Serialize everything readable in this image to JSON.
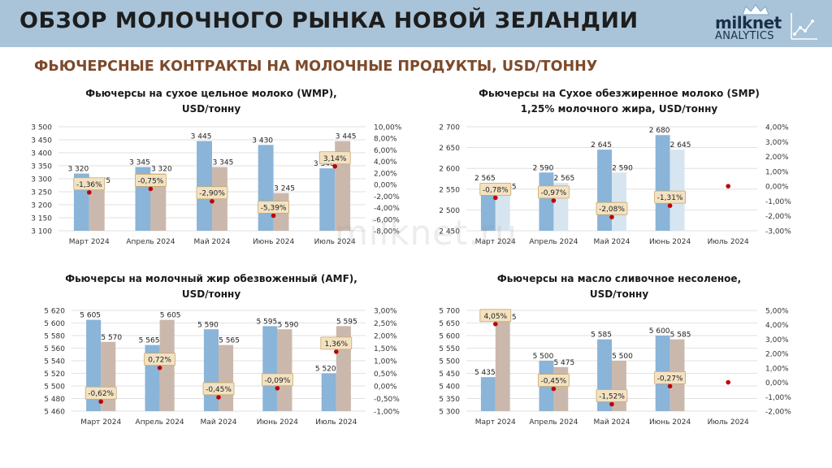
{
  "header": {
    "title": "ОБЗОР МОЛОЧНОГО РЫНКА НОВОЙ ЗЕЛАНДИИ",
    "logo_name": "milknet",
    "logo_sub": "ANALYTICS"
  },
  "section_title": "ФЬЮЧЕРСНЫЕ КОНТРАКТЫ НА МОЛОЧНЫЕ ПРОДУКТЫ, USD/ТОННУ",
  "watermark": "milknet.ru",
  "colors": {
    "bar_current": "#8ab4d8",
    "bar_prev": "#cbb8ac",
    "bar_prev_light": "#d6e5f0",
    "marker": "#c00000",
    "label_bg": "#f3e2c2",
    "label_border": "#c8a86a",
    "gridline": "#d9d9d9"
  },
  "chart_data": [
    {
      "type": "bar",
      "title_lines": [
        "Фьючерсы на сухое цельное молоко (WMP),",
        "USD/тонну"
      ],
      "categories": [
        "Март 2024",
        "Апрель 2024",
        "Май 2024",
        "Июнь 2024",
        "Июль 2024"
      ],
      "bars_a": [
        3320,
        3345,
        3445,
        3430,
        3340
      ],
      "bars_b": [
        3275,
        3320,
        3345,
        3245,
        3445
      ],
      "bars_a_labels": [
        "3 320",
        "3 345",
        "3 445",
        "3 430",
        "3 340"
      ],
      "bars_b_labels": [
        "3 275",
        "3 320",
        "3 345",
        "3 245",
        "3 445"
      ],
      "pct": [
        -1.36,
        -0.75,
        -2.9,
        -5.39,
        3.14
      ],
      "pct_labels": [
        "-1,36%",
        "-0,75%",
        "-2,90%",
        "-5,39%",
        "3,14%"
      ],
      "bars_b_color": "prev",
      "ylim": [
        3100,
        3500
      ],
      "yticks": [
        3100,
        3150,
        3200,
        3250,
        3300,
        3350,
        3400,
        3450,
        3500
      ],
      "ytick_labels": [
        "3 100",
        "3 150",
        "3 200",
        "3 250",
        "3 300",
        "3 350",
        "3 400",
        "3 450",
        "3 500"
      ],
      "y2lim": [
        -8,
        10
      ],
      "y2ticks": [
        -8,
        -6,
        -4,
        -2,
        0,
        2,
        4,
        6,
        8,
        10
      ],
      "y2tick_labels": [
        "-8,00%",
        "-6,00%",
        "-4,00%",
        "-2,00%",
        "0,00%",
        "2,00%",
        "4,00%",
        "6,00%",
        "8,00%",
        "10,00%"
      ]
    },
    {
      "type": "bar",
      "title_lines": [
        "Фьючерсы на Сухое обезжиренное молоко (SMP)",
        "1,25% молочного жира, USD/тонну"
      ],
      "categories": [
        "Март 2024",
        "Апрель 2024",
        "Май 2024",
        "Июнь 2024",
        "Июль 2024"
      ],
      "bars_a": [
        2565,
        2590,
        2645,
        2680,
        null
      ],
      "bars_b": [
        2545,
        2565,
        2590,
        2645,
        null
      ],
      "bars_a_labels": [
        "2 565",
        "2 590",
        "2 645",
        "2 680",
        ""
      ],
      "bars_b_labels": [
        "2 545",
        "2 565",
        "2 590",
        "2 645",
        ""
      ],
      "pct": [
        -0.78,
        -0.97,
        -2.08,
        -1.31,
        0
      ],
      "pct_labels": [
        "-0,78%",
        "-0,97%",
        "-2,08%",
        "-1,31%",
        ""
      ],
      "bars_b_color": "prev_light",
      "ylim": [
        2450,
        2700
      ],
      "yticks": [
        2450,
        2500,
        2550,
        2600,
        2650,
        2700
      ],
      "ytick_labels": [
        "2 450",
        "2 500",
        "2 550",
        "2 600",
        "2 650",
        "2 700"
      ],
      "y2lim": [
        -3,
        4
      ],
      "y2ticks": [
        -3,
        -2,
        -1,
        0,
        1,
        2,
        3,
        4
      ],
      "y2tick_labels": [
        "-3,00%",
        "-2,00%",
        "-1,00%",
        "0,00%",
        "1,00%",
        "2,00%",
        "3,00%",
        "4,00%"
      ]
    },
    {
      "type": "bar",
      "title_lines": [
        "Фьючерсы на молочный жир обезвоженный (AMF),",
        "USD/тонну"
      ],
      "categories": [
        "Март 2024",
        "Апрель 2024",
        "Май 2024",
        "Июнь 2024",
        "Июль 2024"
      ],
      "bars_a": [
        5605,
        5565,
        5590,
        5595,
        5520
      ],
      "bars_b": [
        5570,
        5605,
        5565,
        5590,
        5595
      ],
      "bars_a_labels": [
        "5 605",
        "5 565",
        "5 590",
        "5 595",
        "5 520"
      ],
      "bars_b_labels": [
        "5 570",
        "5 605",
        "5 565",
        "5 590",
        "5 595"
      ],
      "pct": [
        -0.62,
        0.72,
        -0.45,
        -0.09,
        1.36
      ],
      "pct_labels": [
        "-0,62%",
        "0,72%",
        "-0,45%",
        "-0,09%",
        "1,36%"
      ],
      "bars_b_color": "prev",
      "ylim": [
        5460,
        5620
      ],
      "yticks": [
        5460,
        5480,
        5500,
        5520,
        5540,
        5560,
        5580,
        5600,
        5620
      ],
      "ytick_labels": [
        "5 460",
        "5 480",
        "5 500",
        "5 520",
        "5 540",
        "5 560",
        "5 580",
        "5 600",
        "5 620"
      ],
      "y2lim": [
        -1,
        3
      ],
      "y2ticks": [
        -1,
        -0.5,
        0,
        0.5,
        1,
        1.5,
        2,
        2.5,
        3
      ],
      "y2tick_labels": [
        "-1,00%",
        "-0,50%",
        "0,00%",
        "0,50%",
        "1,00%",
        "1,50%",
        "2,00%",
        "2,50%",
        "3,00%"
      ]
    },
    {
      "type": "bar",
      "title_lines": [
        "Фьючерсы на масло сливочное несоленое,",
        "USD/тонну"
      ],
      "categories": [
        "Март 2024",
        "Апрель 2024",
        "Май 2024",
        "Июнь 2024",
        "Июль 2024"
      ],
      "bars_a": [
        5435,
        5500,
        5585,
        5600,
        null
      ],
      "bars_b": [
        5655,
        5475,
        5500,
        5585,
        null
      ],
      "bars_a_labels": [
        "5 435",
        "5 500",
        "5 585",
        "5 600",
        ""
      ],
      "bars_b_labels": [
        "5 655",
        "5 475",
        "5 500",
        "5 585",
        ""
      ],
      "pct": [
        4.05,
        -0.45,
        -1.52,
        -0.27,
        0
      ],
      "pct_labels": [
        "4,05%",
        "-0,45%",
        "-1,52%",
        "-0,27%",
        ""
      ],
      "bars_b_color": "prev",
      "ylim": [
        5300,
        5700
      ],
      "yticks": [
        5300,
        5350,
        5400,
        5450,
        5500,
        5550,
        5600,
        5650,
        5700
      ],
      "ytick_labels": [
        "5 300",
        "5 350",
        "5 400",
        "5 450",
        "5 500",
        "5 550",
        "5 600",
        "5 650",
        "5 700"
      ],
      "y2lim": [
        -2,
        5
      ],
      "y2ticks": [
        -2,
        -1,
        0,
        1,
        2,
        3,
        4,
        5
      ],
      "y2tick_labels": [
        "-2,00%",
        "-1,00%",
        "0,00%",
        "1,00%",
        "2,00%",
        "3,00%",
        "4,00%",
        "5,00%"
      ]
    }
  ]
}
